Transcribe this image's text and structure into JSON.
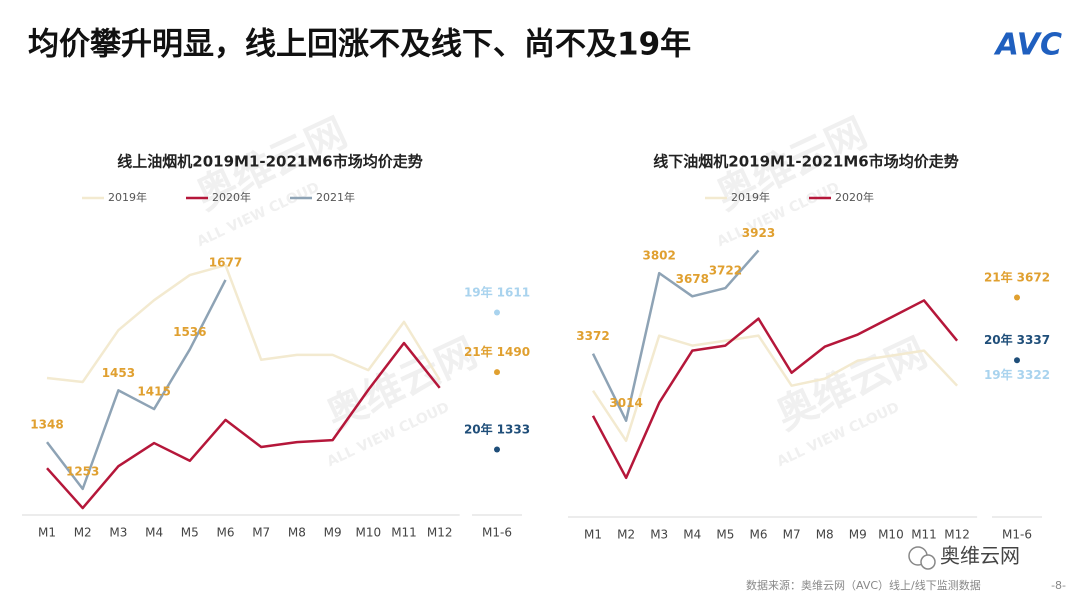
{
  "title": "均价攀升明显，线上回涨不及线下、尚不及19年",
  "logo": "AVC",
  "watermark": "奥维云网",
  "watermark_en": "ALL VIEW CLOUD",
  "wechat_badge": "奥维云网",
  "source": "数据来源：奥维云网（AVC）线上/线下监测数据",
  "page_number": "-8-",
  "chart_data": [
    {
      "type": "line",
      "title": "线上油烟机2019M1-2021M6市场均价走势",
      "categories": [
        "M1",
        "M2",
        "M3",
        "M4",
        "M5",
        "M6",
        "M7",
        "M8",
        "M9",
        "M10",
        "M11",
        "M12"
      ],
      "ylim": [
        1200,
        1750
      ],
      "series": [
        {
          "name": "2019年",
          "color": "#f3ead0",
          "values": [
            1478,
            1470,
            1575,
            1636,
            1687,
            1707,
            1515,
            1525,
            1525,
            1494,
            1592,
            1474
          ]
        },
        {
          "name": "2020年",
          "color": "#b5173a",
          "values": [
            1295,
            1214,
            1299,
            1346,
            1310,
            1393,
            1338,
            1348,
            1352,
            1454,
            1549,
            1458
          ]
        },
        {
          "name": "2021年",
          "color": "#8ea3b5",
          "values": [
            1348,
            1253,
            1453,
            1415,
            1536,
            1677,
            null,
            null,
            null,
            null,
            null,
            null
          ],
          "show_labels": true,
          "label_color": "#e0a030"
        }
      ],
      "summary_category": "M1-6",
      "summary": [
        {
          "label": "19年",
          "value": 1611,
          "color": "#a9d3ee"
        },
        {
          "label": "21年",
          "value": 1490,
          "color": "#e0a030"
        },
        {
          "label": "20年",
          "value": 1333,
          "color": "#1f4e79"
        }
      ]
    },
    {
      "type": "line",
      "title": "线下油烟机2019M1-2021M6市场均价走势",
      "categories": [
        "M1",
        "M2",
        "M3",
        "M4",
        "M5",
        "M6",
        "M7",
        "M8",
        "M9",
        "M10",
        "M11",
        "M12"
      ],
      "ylim": [
        2500,
        4000
      ],
      "series": [
        {
          "name": "2019年",
          "color": "#f3ead0",
          "values": [
            3174,
            2907,
            3468,
            3415,
            3441,
            3468,
            3201,
            3238,
            3335,
            3361,
            3388,
            3201
          ]
        },
        {
          "name": "2020年",
          "color": "#b5173a",
          "values": [
            3040,
            2709,
            3110,
            3388,
            3415,
            3559,
            3270,
            3409,
            3474,
            3565,
            3656,
            3441
          ]
        },
        {
          "color": "#8ea3b5",
          "values": [
            3372,
            3014,
            3802,
            3678,
            3722,
            3923,
            null,
            null,
            null,
            null,
            null,
            null
          ],
          "show_labels": true,
          "label_color": "#e0a030"
        }
      ],
      "summary_category": "M1-6",
      "summary": [
        {
          "label": "21年",
          "value": 3672,
          "color": "#e0a030"
        },
        {
          "label": "20年",
          "value": 3337,
          "color": "#1f4e79"
        },
        {
          "label": "19年",
          "value": 3322,
          "color": "#a9d3ee"
        }
      ]
    }
  ]
}
